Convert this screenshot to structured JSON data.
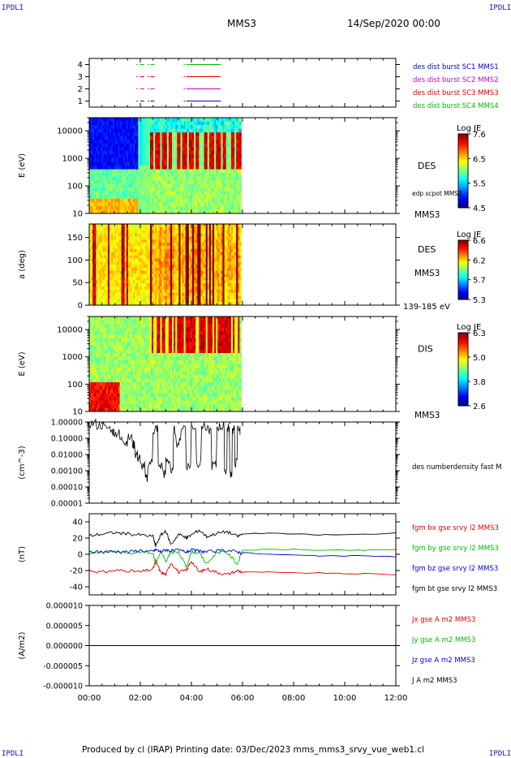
{
  "header": {
    "corner_tl": "IPDLI",
    "corner_tr": "IPDLI",
    "corner_bl": "IPDLI",
    "corner_br": "IPDLI",
    "spacecraft": "MMS3",
    "date": "14/Sep/2020 00:00"
  },
  "footer": {
    "text": "Produced by cl (IRAP)   Printing date: 03/Dec/2023   mms_mms3_srvy_vue_web1.cl"
  },
  "chart_data": [
    {
      "type": "line",
      "title": "",
      "ylabel": "",
      "ylim": [
        0.5,
        4.5
      ],
      "yticks": [
        "1",
        "2",
        "3",
        "4"
      ],
      "series": [
        {
          "name": "des dist burst SC1 MMS1",
          "color": "#0000cc",
          "y": 1,
          "segments": [
            [
              1.85,
              1.9
            ],
            [
              2.0,
              2.15
            ],
            [
              2.3,
              2.35
            ],
            [
              2.4,
              2.55
            ],
            [
              3.7,
              3.75
            ],
            [
              3.8,
              5.15
            ]
          ]
        },
        {
          "name": "des dist burst SC2 MMS2",
          "color": "#cc00cc",
          "y": 2,
          "segments": [
            [
              1.85,
              1.9
            ],
            [
              2.0,
              2.15
            ],
            [
              2.3,
              2.35
            ],
            [
              2.4,
              2.55
            ],
            [
              3.7,
              3.75
            ],
            [
              3.8,
              5.15
            ]
          ]
        },
        {
          "name": "des dist burst SC3 MMS3",
          "color": "#dd0000",
          "y": 3,
          "segments": [
            [
              1.85,
              1.9
            ],
            [
              2.0,
              2.15
            ],
            [
              2.3,
              2.35
            ],
            [
              2.4,
              2.55
            ],
            [
              3.7,
              3.75
            ],
            [
              3.8,
              5.15
            ]
          ]
        },
        {
          "name": "des dist burst SC4 MMS4",
          "color": "#00bb00",
          "y": 4,
          "segments": [
            [
              1.85,
              1.9
            ],
            [
              2.0,
              2.15
            ],
            [
              2.3,
              2.35
            ],
            [
              2.4,
              2.55
            ],
            [
              3.7,
              3.75
            ],
            [
              3.8,
              5.15
            ]
          ]
        }
      ]
    },
    {
      "type": "heatmap",
      "ylabel": "E (eV)",
      "yscale": "log",
      "ylim": [
        10,
        30000
      ],
      "yticks": [
        "10",
        "100",
        "1000",
        "10000"
      ],
      "side_labels": [
        "DES",
        "edp scpot MMS3",
        "MMS3"
      ],
      "colorbar": {
        "label": "Log JE",
        "ticks": [
          "7.6",
          "6.5",
          "5.5",
          "4.5"
        ],
        "min": 4.5,
        "max": 7.6
      },
      "data_end_hour": 5.95
    },
    {
      "type": "heatmap",
      "ylabel": "a (deg)",
      "ylim": [
        0,
        180
      ],
      "yticks": [
        "0",
        "50",
        "100",
        "150"
      ],
      "side_labels": [
        "DES",
        "MMS3",
        "139-185 eV"
      ],
      "colorbar": {
        "label": "Log JE",
        "ticks": [
          "6.6",
          "6.2",
          "5.7",
          "5.3"
        ],
        "min": 5.3,
        "max": 6.6
      },
      "data_end_hour": 5.95
    },
    {
      "type": "heatmap",
      "ylabel": "E (eV)",
      "yscale": "log",
      "ylim": [
        10,
        30000
      ],
      "yticks": [
        "10",
        "100",
        "1000",
        "10000"
      ],
      "side_labels": [
        "DIS",
        "MMS3"
      ],
      "colorbar": {
        "label": "Log JE",
        "ticks": [
          "6.3",
          "5.0",
          "3.8",
          "2.6"
        ],
        "min": 2.6,
        "max": 6.3
      },
      "data_end_hour": 5.95
    },
    {
      "type": "line",
      "ylabel": "(cm^-3)",
      "yscale": "log",
      "ylim": [
        1e-05,
        1.0
      ],
      "yticks": [
        "0.00001",
        "0.00010",
        "0.00100",
        "0.01000",
        "0.10000",
        "1.00000"
      ],
      "series": [
        {
          "name": "des numberdensity fast M",
          "color": "#000000",
          "x": [
            0.0,
            0.3,
            0.6,
            0.9,
            1.0,
            1.2,
            1.4,
            1.5,
            1.7,
            1.8,
            1.9,
            2.0,
            2.2,
            2.3,
            2.5,
            2.6,
            2.7,
            2.9,
            3.0,
            3.2,
            3.3,
            3.4,
            3.6,
            3.8,
            4.0,
            4.2,
            4.4,
            4.6,
            4.8,
            5.0,
            5.2,
            5.3,
            5.4,
            5.5,
            5.6,
            5.7,
            5.8,
            5.9
          ],
          "y": [
            0.8,
            0.6,
            0.4,
            0.25,
            0.2,
            0.08,
            0.06,
            0.1,
            0.04,
            0.01,
            0.006,
            0.002,
            0.0003,
            0.003,
            0.3,
            0.4,
            0.002,
            0.0006,
            0.004,
            0.0008,
            0.3,
            0.05,
            0.5,
            0.002,
            0.5,
            0.003,
            0.6,
            0.3,
            0.002,
            0.5,
            0.5,
            0.001,
            0.4,
            0.0007,
            0.3,
            0.003,
            0.4,
            0.3
          ]
        }
      ]
    },
    {
      "type": "line",
      "ylabel": "(nT)",
      "ylim": [
        -50,
        50
      ],
      "yticks": [
        "-40",
        "-20",
        "0",
        "20",
        "40"
      ],
      "x": [
        0.0,
        0.5,
        1.0,
        1.5,
        2.0,
        2.5,
        2.6,
        2.8,
        3.0,
        3.2,
        3.5,
        3.8,
        4.0,
        4.3,
        4.6,
        5.0,
        5.4,
        5.8,
        6.0,
        7.0,
        8.0,
        9.0,
        10.0,
        11.0,
        12.0
      ],
      "series": [
        {
          "name": "fgm bx gse srvy l2 MMS3",
          "color": "#dd0000",
          "y": [
            -20,
            -22,
            -20,
            -20,
            -22,
            -18,
            -8,
            -22,
            -25,
            -10,
            -22,
            -20,
            -8,
            -22,
            -18,
            -22,
            -25,
            -20,
            -22,
            -22,
            -23,
            -23,
            -24,
            -24,
            -25
          ]
        },
        {
          "name": "fgm by gse srvy l2 MMS3",
          "color": "#00bb00",
          "y": [
            2,
            3,
            3,
            2,
            3,
            2,
            -12,
            4,
            -10,
            3,
            2,
            -15,
            3,
            2,
            -12,
            3,
            2,
            -12,
            5,
            6,
            6,
            5,
            5,
            5,
            6
          ]
        },
        {
          "name": "fgm bz gse srvy l2 MMS3",
          "color": "#0000dd",
          "y": [
            3,
            3,
            4,
            3,
            5,
            3,
            6,
            3,
            6,
            4,
            5,
            3,
            5,
            4,
            3,
            4,
            5,
            3,
            2,
            0,
            -1,
            -2,
            -2,
            -2,
            -3
          ]
        },
        {
          "name": "fgm bt gse srvy l2 MMS3",
          "color": "#000000",
          "y": [
            23,
            25,
            27,
            25,
            24,
            22,
            10,
            24,
            28,
            12,
            25,
            20,
            24,
            30,
            22,
            26,
            28,
            22,
            25,
            26,
            25,
            24,
            24,
            25,
            26
          ]
        }
      ]
    },
    {
      "type": "line",
      "ylabel": "(A/m2)",
      "ylim": [
        -1e-05,
        1e-05
      ],
      "yticks": [
        "-0.000010",
        "-0.000005",
        "0.000000",
        "0.000005",
        "0.000010"
      ],
      "series": [
        {
          "name": "Jx gse A m2 MMS3",
          "color": "#dd0000",
          "x": [
            0.0,
            6.0
          ],
          "y": [
            0.0,
            0.0
          ]
        },
        {
          "name": "Jy gse A m2 MMS3",
          "color": "#00bb00",
          "x": [
            0.0,
            6.0
          ],
          "y": [
            0.0,
            0.0
          ]
        },
        {
          "name": "Jz gse A m2 MMS3",
          "color": "#0000dd",
          "x": [
            0.0,
            6.0
          ],
          "y": [
            0.0,
            0.0
          ]
        },
        {
          "name": "J A m2 MMS3",
          "color": "#000000",
          "x": [
            0.0,
            6.0
          ],
          "y": [
            0.0,
            0.0
          ]
        }
      ]
    }
  ],
  "time_axis": {
    "xlim": [
      0,
      12
    ],
    "ticks": [
      "00:00",
      "02:00",
      "04:00",
      "06:00",
      "08:00",
      "10:00",
      "12:00"
    ]
  }
}
